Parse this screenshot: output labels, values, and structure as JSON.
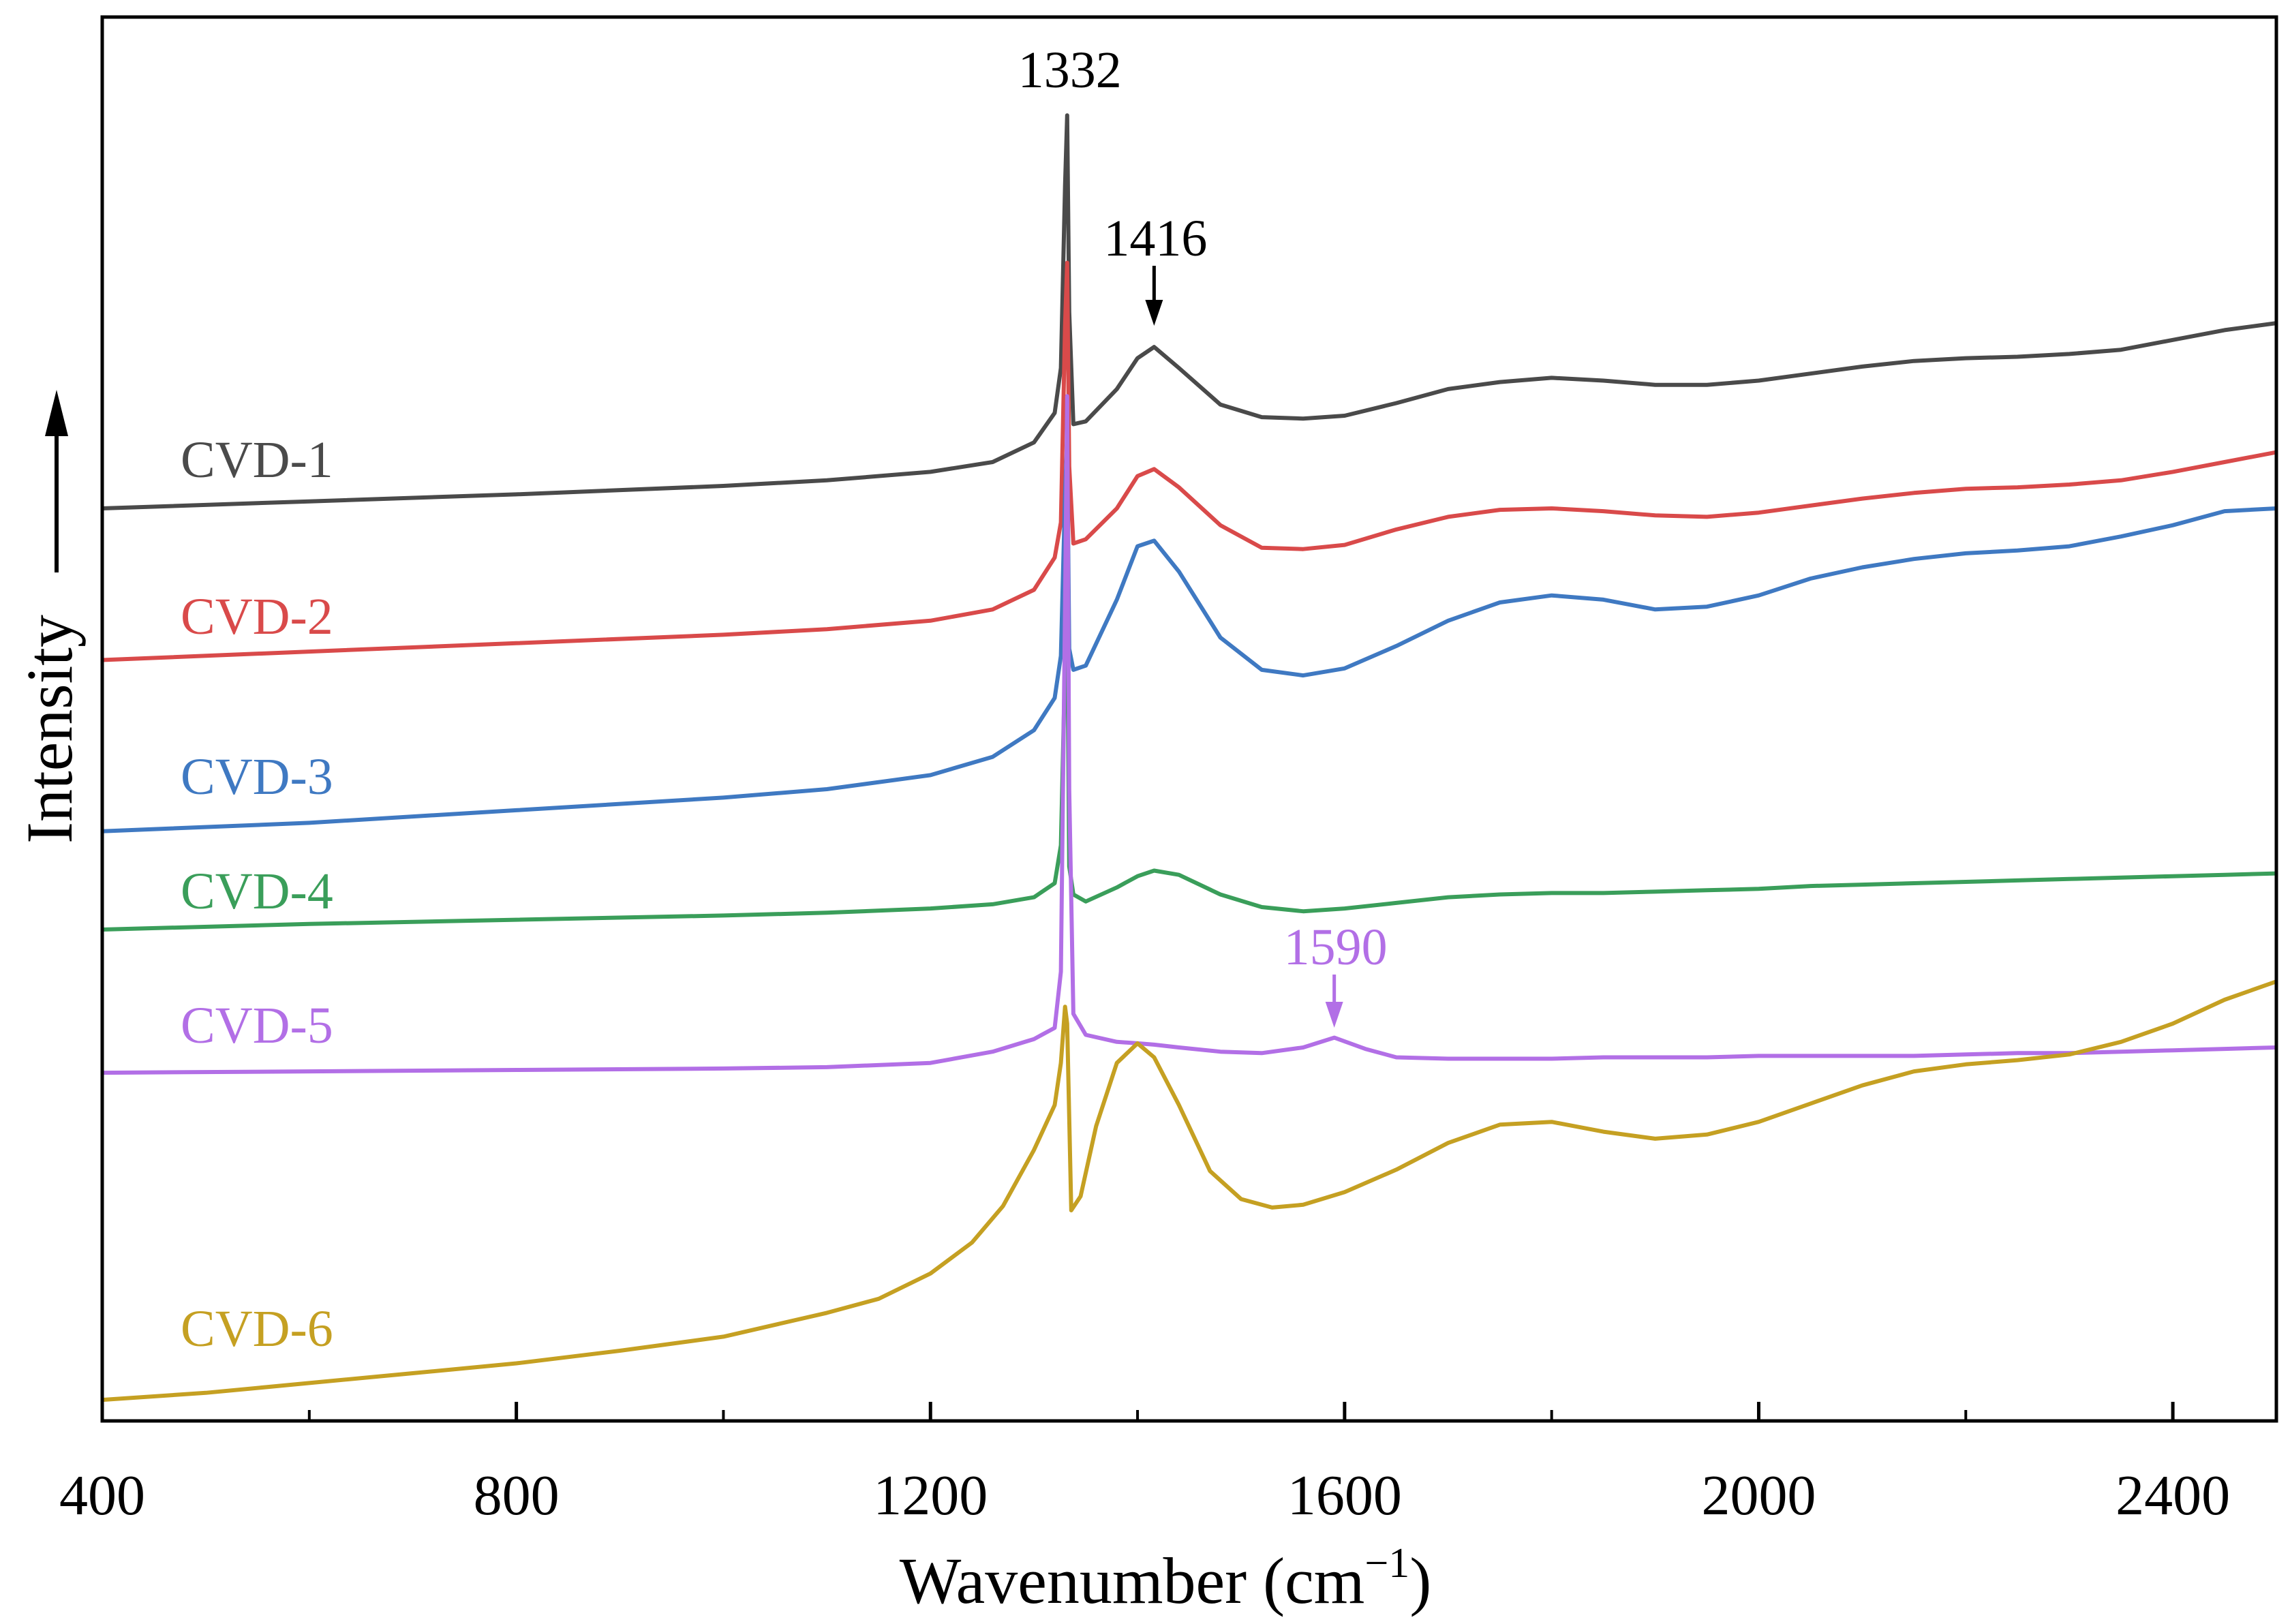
{
  "chart_data": {
    "type": "line",
    "title": "",
    "xlabel": "Wavenumber (cm",
    "xlabel_sup": "−1",
    "xlabel_close": ")",
    "ylabel": "Intensity",
    "xlim": [
      400,
      2500
    ],
    "ylim": [
      0,
      100
    ],
    "xticks": [
      400,
      800,
      1200,
      1600,
      2000,
      2400
    ],
    "xtick_labels": [
      "400",
      "800",
      "1200",
      "1600",
      "2000",
      "2400"
    ],
    "minor_xticks": [
      600,
      1000,
      1400,
      1800,
      2200
    ],
    "show_yticks": false,
    "grid": false,
    "series": [
      {
        "name": "CVD-1",
        "color": "#4a4a4a",
        "x": [
          400,
          600,
          800,
          1000,
          1100,
          1200,
          1260,
          1300,
          1320,
          1326,
          1330,
          1332,
          1334,
          1338,
          1350,
          1380,
          1400,
          1416,
          1440,
          1480,
          1520,
          1560,
          1600,
          1650,
          1700,
          1750,
          1800,
          1850,
          1900,
          1950,
          2000,
          2050,
          2100,
          2150,
          2200,
          2250,
          2300,
          2350,
          2400,
          2450,
          2500
        ],
        "y": [
          65.0,
          65.5,
          66.0,
          66.6,
          67.0,
          67.6,
          68.3,
          69.7,
          71.8,
          75.0,
          88.0,
          93.0,
          79.0,
          71.0,
          71.2,
          73.5,
          75.7,
          76.5,
          75.0,
          72.4,
          71.5,
          71.4,
          71.6,
          72.5,
          73.5,
          74.0,
          74.3,
          74.1,
          73.8,
          73.8,
          74.1,
          74.6,
          75.1,
          75.5,
          75.7,
          75.8,
          76.0,
          76.3,
          77.0,
          77.7,
          78.2
        ]
      },
      {
        "name": "CVD-2",
        "color": "#d94a4a",
        "x": [
          400,
          600,
          800,
          1000,
          1100,
          1200,
          1260,
          1300,
          1320,
          1326,
          1330,
          1332,
          1334,
          1338,
          1350,
          1380,
          1400,
          1416,
          1440,
          1480,
          1520,
          1560,
          1600,
          1650,
          1700,
          1750,
          1800,
          1850,
          1900,
          1950,
          2000,
          2050,
          2100,
          2150,
          2200,
          2250,
          2300,
          2350,
          2400,
          2450,
          2500
        ],
        "y": [
          54.2,
          54.8,
          55.4,
          56.0,
          56.4,
          57.0,
          57.8,
          59.2,
          61.5,
          64.0,
          78.0,
          82.5,
          68.0,
          62.5,
          62.8,
          65.0,
          67.3,
          67.8,
          66.5,
          63.8,
          62.2,
          62.1,
          62.4,
          63.5,
          64.4,
          64.9,
          65.0,
          64.8,
          64.5,
          64.4,
          64.7,
          65.2,
          65.7,
          66.1,
          66.4,
          66.5,
          66.7,
          67.0,
          67.6,
          68.3,
          69.0
        ]
      },
      {
        "name": "CVD-3",
        "color": "#3f79c2",
        "x": [
          400,
          600,
          800,
          1000,
          1100,
          1200,
          1260,
          1300,
          1320,
          1326,
          1330,
          1332,
          1334,
          1338,
          1350,
          1380,
          1400,
          1416,
          1440,
          1480,
          1520,
          1560,
          1600,
          1650,
          1700,
          1750,
          1800,
          1850,
          1900,
          1950,
          2000,
          2050,
          2100,
          2150,
          2200,
          2250,
          2300,
          2350,
          2400,
          2450,
          2500
        ],
        "y": [
          42.0,
          42.6,
          43.5,
          44.4,
          45.0,
          46.0,
          47.3,
          49.2,
          51.5,
          54.5,
          66.0,
          70.0,
          55.0,
          53.5,
          53.8,
          58.5,
          62.3,
          62.7,
          60.5,
          55.8,
          53.5,
          53.1,
          53.6,
          55.2,
          57.0,
          58.3,
          58.8,
          58.5,
          57.8,
          58.0,
          58.8,
          60.0,
          60.8,
          61.4,
          61.8,
          62.0,
          62.3,
          63.0,
          63.8,
          64.8,
          65.0
        ]
      },
      {
        "name": "CVD-4",
        "color": "#3a9e5a",
        "x": [
          400,
          600,
          800,
          1000,
          1100,
          1200,
          1260,
          1300,
          1320,
          1326,
          1330,
          1332,
          1334,
          1338,
          1350,
          1380,
          1400,
          1416,
          1440,
          1480,
          1520,
          1560,
          1600,
          1650,
          1700,
          1750,
          1800,
          1850,
          1900,
          1950,
          2000,
          2050,
          2100,
          2150,
          2200,
          2250,
          2300,
          2350,
          2400,
          2450,
          2500
        ],
        "y": [
          35.0,
          35.4,
          35.7,
          36.0,
          36.2,
          36.5,
          36.8,
          37.3,
          38.3,
          41.0,
          54.0,
          58.0,
          39.5,
          37.5,
          37.0,
          38.0,
          38.8,
          39.2,
          38.9,
          37.5,
          36.6,
          36.3,
          36.5,
          36.9,
          37.3,
          37.5,
          37.6,
          37.6,
          37.7,
          37.8,
          37.9,
          38.1,
          38.2,
          38.3,
          38.4,
          38.5,
          38.6,
          38.7,
          38.8,
          38.9,
          39.0
        ]
      },
      {
        "name": "CVD-5",
        "color": "#b26fe6",
        "x": [
          400,
          600,
          800,
          1000,
          1100,
          1200,
          1260,
          1300,
          1320,
          1326,
          1330,
          1332,
          1334,
          1338,
          1350,
          1380,
          1400,
          1416,
          1440,
          1480,
          1520,
          1560,
          1590,
          1620,
          1650,
          1700,
          1750,
          1800,
          1850,
          1900,
          1950,
          2000,
          2050,
          2100,
          2150,
          2200,
          2250,
          2300,
          2350,
          2400,
          2450,
          2500
        ],
        "y": [
          24.8,
          24.9,
          25.0,
          25.1,
          25.2,
          25.5,
          26.3,
          27.2,
          28.0,
          32.0,
          58.0,
          73.0,
          45.0,
          29.0,
          27.5,
          27.0,
          26.9,
          26.8,
          26.6,
          26.3,
          26.2,
          26.6,
          27.3,
          26.5,
          25.9,
          25.8,
          25.8,
          25.8,
          25.9,
          25.9,
          25.9,
          26.0,
          26.0,
          26.0,
          26.0,
          26.1,
          26.2,
          26.2,
          26.3,
          26.4,
          26.5,
          26.6
        ]
      },
      {
        "name": "CVD-6",
        "color": "#c5a022",
        "x": [
          400,
          500,
          600,
          700,
          800,
          900,
          1000,
          1100,
          1150,
          1200,
          1240,
          1270,
          1300,
          1320,
          1326,
          1330,
          1332,
          1336,
          1345,
          1360,
          1380,
          1400,
          1416,
          1440,
          1470,
          1500,
          1530,
          1560,
          1600,
          1650,
          1700,
          1750,
          1800,
          1850,
          1900,
          1950,
          2000,
          2050,
          2100,
          2150,
          2200,
          2250,
          2300,
          2350,
          2400,
          2450,
          2500
        ],
        "y": [
          1.5,
          2.0,
          2.7,
          3.4,
          4.1,
          5.0,
          6.0,
          7.7,
          8.7,
          10.5,
          12.7,
          15.3,
          19.3,
          22.5,
          25.5,
          29.5,
          28.3,
          15.0,
          16.0,
          21.0,
          25.5,
          26.9,
          25.9,
          22.5,
          17.8,
          15.8,
          15.2,
          15.4,
          16.3,
          17.9,
          19.8,
          21.1,
          21.3,
          20.6,
          20.1,
          20.4,
          21.3,
          22.6,
          23.9,
          24.9,
          25.4,
          25.7,
          26.1,
          27.0,
          28.3,
          30.0,
          31.3
        ]
      }
    ],
    "annotations": [
      {
        "text": "1332",
        "x": 1332,
        "color": "#000000",
        "arrow": false
      },
      {
        "text": "1416",
        "x": 1416,
        "color": "#000000",
        "arrow": true
      },
      {
        "text": "1590",
        "x": 1590,
        "color": "#b26fe6",
        "arrow": true
      }
    ]
  }
}
